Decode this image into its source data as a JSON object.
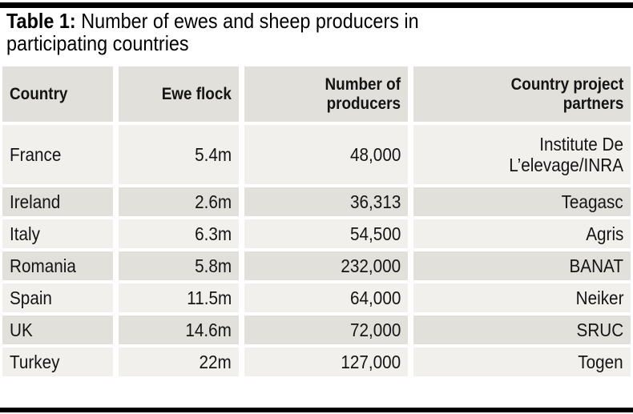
{
  "page": {
    "background": "#ffffff",
    "rule_color": "#000000"
  },
  "title": {
    "prefix": "Table 1:",
    "line1_rest": "Number of ewes and sheep producers in",
    "line2": "participating countries"
  },
  "table": {
    "colors": {
      "header_bg": "#e1e0db",
      "row_dark_bg": "#e1e0db",
      "row_light_bg": "#f1f0ec",
      "text": "#141414"
    },
    "headers": [
      {
        "id": "country",
        "lines": [
          "Country"
        ],
        "align": "left"
      },
      {
        "id": "ewe-flock",
        "lines": [
          "Ewe flock"
        ],
        "align": "right"
      },
      {
        "id": "producers",
        "lines": [
          "Number of",
          "producers"
        ],
        "align": "right"
      },
      {
        "id": "partners",
        "lines": [
          "Country project",
          "partners"
        ],
        "align": "right"
      }
    ],
    "rows": [
      {
        "country": "France",
        "ewe_flock": "5.4m",
        "producers": "48,000",
        "partners": "Institute De L’elevage/INRA"
      },
      {
        "country": "Ireland",
        "ewe_flock": "2.6m",
        "producers": "36,313",
        "partners": "Teagasc"
      },
      {
        "country": "Italy",
        "ewe_flock": "6.3m",
        "producers": "54,500",
        "partners": "Agris"
      },
      {
        "country": "Romania",
        "ewe_flock": "5.8m",
        "producers": "232,000",
        "partners": "BANAT"
      },
      {
        "country": "Spain",
        "ewe_flock": "11.5m",
        "producers": "64,000",
        "partners": "Neiker"
      },
      {
        "country": "UK",
        "ewe_flock": "14.6m",
        "producers": "72,000",
        "partners": "SRUC"
      },
      {
        "country": "Turkey",
        "ewe_flock": "22m",
        "producers": "127,000",
        "partners": "Togen"
      }
    ]
  },
  "chart_data": {
    "type": "table",
    "title": "Table 1: Number of ewes and sheep producers in participating countries",
    "columns": [
      "Country",
      "Ewe flock",
      "Number of producers",
      "Country project partners"
    ],
    "rows": [
      [
        "France",
        "5.4m",
        "48,000",
        "Institute De L’elevage/INRA"
      ],
      [
        "Ireland",
        "2.6m",
        "36,313",
        "Teagasc"
      ],
      [
        "Italy",
        "6.3m",
        "54,500",
        "Agris"
      ],
      [
        "Romania",
        "5.8m",
        "232,000",
        "BANAT"
      ],
      [
        "Spain",
        "11.5m",
        "64,000",
        "Neiker"
      ],
      [
        "UK",
        "14.6m",
        "72,000",
        "SRUC"
      ],
      [
        "Turkey",
        "22m",
        "127,000",
        "Togen"
      ]
    ]
  }
}
